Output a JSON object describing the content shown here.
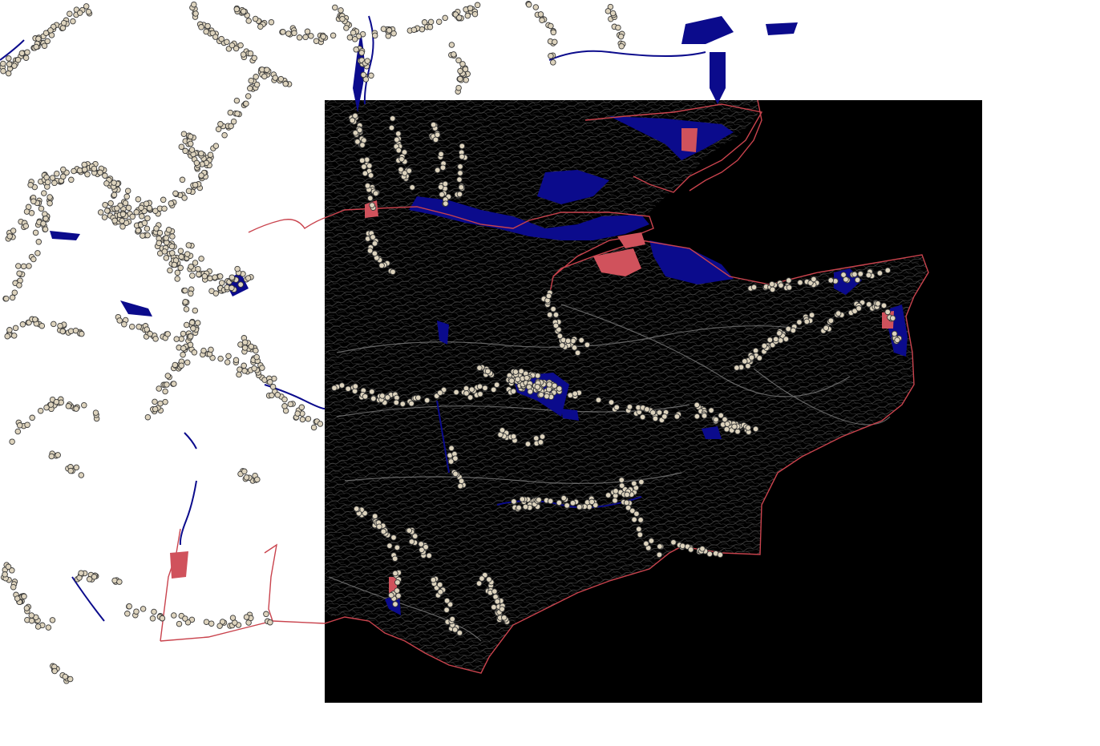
{
  "map": {
    "background_color": "#ffffff",
    "raster": {
      "name": "hillshade-relief",
      "color": "#000000",
      "relief_color": "#b9b9b9"
    },
    "layers": [
      {
        "name": "flood-zones",
        "color": "#0b0b8c"
      },
      {
        "name": "coastline-boundary",
        "color": "#c9434d"
      },
      {
        "name": "point-features",
        "fill": "#ddd3bd",
        "stroke": "#3a3a3a"
      },
      {
        "name": "built-up-areas",
        "color": "#d0525c"
      }
    ]
  }
}
